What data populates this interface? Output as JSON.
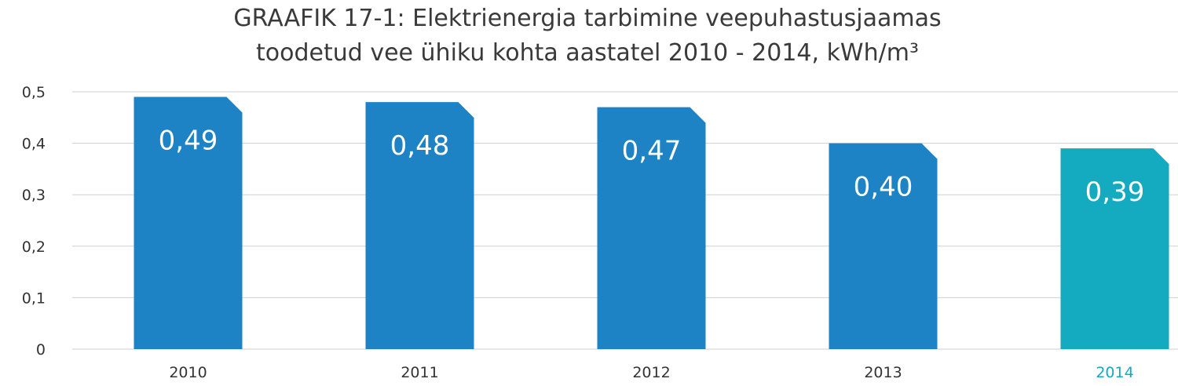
{
  "chart_data": {
    "type": "bar",
    "title_lines": [
      "GRAAFIK 17-1: Elektrienergia tarbimine veepuhastusjaamas",
      "toodetud vee ühiku kohta aastatel 2010 - 2014, kWh/m³"
    ],
    "categories": [
      "2010",
      "2011",
      "2012",
      "2013",
      "2014"
    ],
    "values": [
      0.49,
      0.48,
      0.47,
      0.4,
      0.39
    ],
    "value_labels": [
      "0,49",
      "0,48",
      "0,47",
      "0,40",
      "0,39"
    ],
    "yticks": [
      0,
      0.1,
      0.2,
      0.3,
      0.4,
      0.5
    ],
    "ytick_labels": [
      "0",
      "0,1",
      "0,2",
      "0,3",
      "0,4",
      "0,5"
    ],
    "ylim": [
      0,
      0.5
    ],
    "grid": true,
    "legend": "none",
    "xlabel": "",
    "ylabel": "",
    "colors": {
      "bar": "#1e83c5",
      "highlight_bar": "#14aac0",
      "highlight_label": "#14aac0",
      "category_label": "#333333"
    },
    "highlight_index": 4
  }
}
